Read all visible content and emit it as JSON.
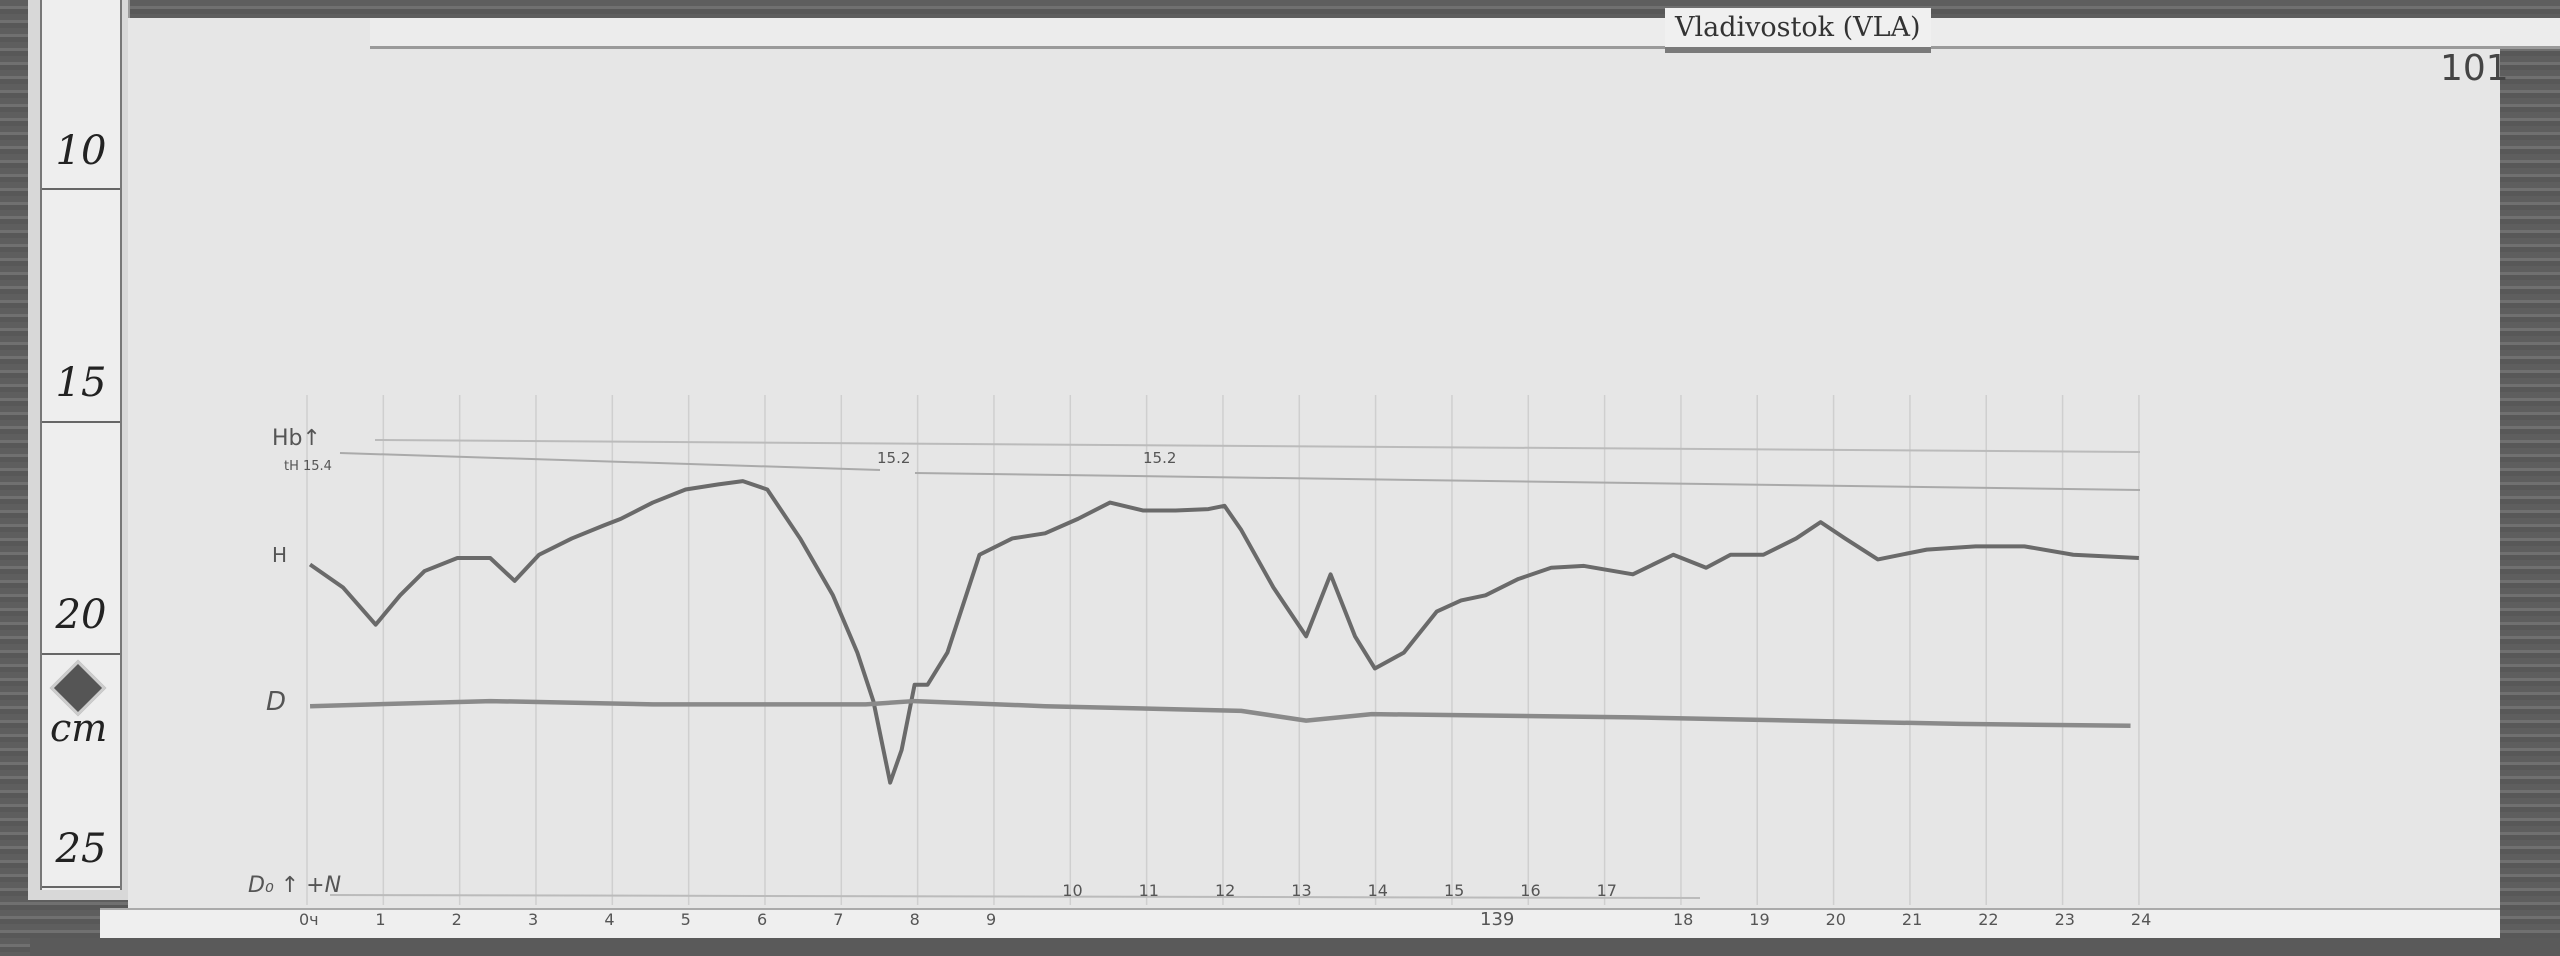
{
  "station_label": "Vladivostok (VLA)",
  "sheet_number": "101",
  "ruler": {
    "unit": "cm",
    "labels": [
      "10",
      "15",
      "20",
      "25"
    ]
  },
  "annotations": {
    "hb_label": "Hb↑",
    "hb_value": "tH 15.4",
    "h_label": "H",
    "d_label": "D",
    "d0_label": "D₀ ↑ +N",
    "baseline_marks": [
      "15.2",
      "15.2"
    ],
    "bottom_note": "139"
  },
  "chart_data": {
    "type": "line",
    "xlabel": "",
    "ylabel": "",
    "x_unit": "hour",
    "y_unit": "cm",
    "xlim": [
      0,
      24
    ],
    "ylim": [
      10,
      25
    ],
    "y_inverted": true,
    "grid": "vertical hourly lines",
    "hour_labels": [
      "0ч",
      "1",
      "2",
      "3",
      "4",
      "5",
      "6",
      "7",
      "8",
      "9",
      "10",
      "11",
      "12",
      "13",
      "14",
      "15",
      "16",
      "17",
      "18",
      "19",
      "20",
      "21",
      "22",
      "23",
      "24"
    ],
    "series": [
      {
        "name": "H",
        "color": "#6a6a6a",
        "x": [
          0.04,
          0.47,
          0.9,
          1.22,
          1.54,
          1.97,
          2.4,
          2.72,
          3.04,
          3.47,
          3.89,
          4.11,
          4.53,
          4.96,
          5.39,
          5.71,
          6.03,
          6.46,
          6.89,
          7.21,
          7.42,
          7.64,
          7.79,
          7.96,
          8.13,
          8.39,
          8.81,
          9.24,
          9.67,
          10.1,
          10.52,
          10.95,
          11.38,
          11.81,
          12.02,
          12.24,
          12.66,
          13.09,
          13.41,
          13.73,
          13.99,
          14.37,
          14.8,
          15.12,
          15.44,
          15.87,
          16.3,
          16.73,
          17.37,
          17.9,
          18.33,
          18.65,
          19.08,
          19.51,
          19.83,
          20.15,
          20.58,
          21.22,
          21.86,
          22.5,
          23.14,
          24.0
        ],
        "y": [
          18.08,
          18.57,
          19.37,
          18.74,
          18.22,
          17.94,
          17.94,
          18.43,
          17.87,
          17.52,
          17.24,
          17.1,
          16.75,
          16.47,
          16.36,
          16.29,
          16.47,
          17.52,
          18.74,
          19.97,
          21.01,
          22.76,
          22.06,
          20.66,
          20.66,
          19.97,
          17.87,
          17.52,
          17.41,
          17.1,
          16.75,
          16.92,
          16.92,
          16.89,
          16.82,
          17.34,
          18.57,
          19.62,
          18.29,
          19.62,
          20.31,
          19.97,
          19.09,
          18.85,
          18.74,
          18.39,
          18.15,
          18.11,
          18.29,
          17.87,
          18.15,
          17.87,
          17.87,
          17.52,
          17.17,
          17.52,
          17.97,
          17.76,
          17.69,
          17.69,
          17.87,
          17.94
        ]
      },
      {
        "name": "D",
        "color": "#8a8a8a",
        "x": [
          0.04,
          2.4,
          4.53,
          7.32,
          7.96,
          9.67,
          12.24,
          13.09,
          13.95,
          17.37,
          19.51,
          21.65,
          23.89
        ],
        "y": [
          21.12,
          21.01,
          21.08,
          21.08,
          21.01,
          21.12,
          21.22,
          21.43,
          21.29,
          21.36,
          21.43,
          21.5,
          21.54
        ]
      }
    ]
  }
}
